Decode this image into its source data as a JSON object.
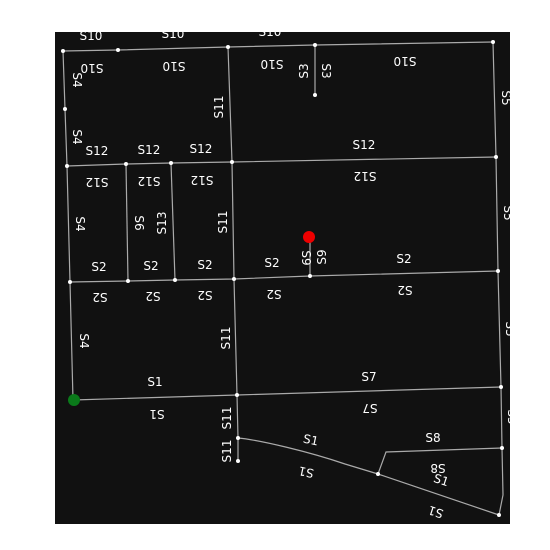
{
  "map": {
    "background_color": "#111111",
    "road_color": "#aaaaaa",
    "node_color": "#ffffff",
    "start_marker": {
      "color": "#0a7a1a"
    },
    "goal_marker": {
      "color": "#ee0000"
    },
    "labels": {
      "s1": "S1",
      "s2": "S2",
      "s3": "S3",
      "s4": "S4",
      "s5": "S5",
      "s6": "S6",
      "s7": "S7",
      "s8": "S8",
      "s9": "S9",
      "s10": "S10",
      "s11": "S11",
      "s12": "S12",
      "s13": "S13"
    }
  }
}
